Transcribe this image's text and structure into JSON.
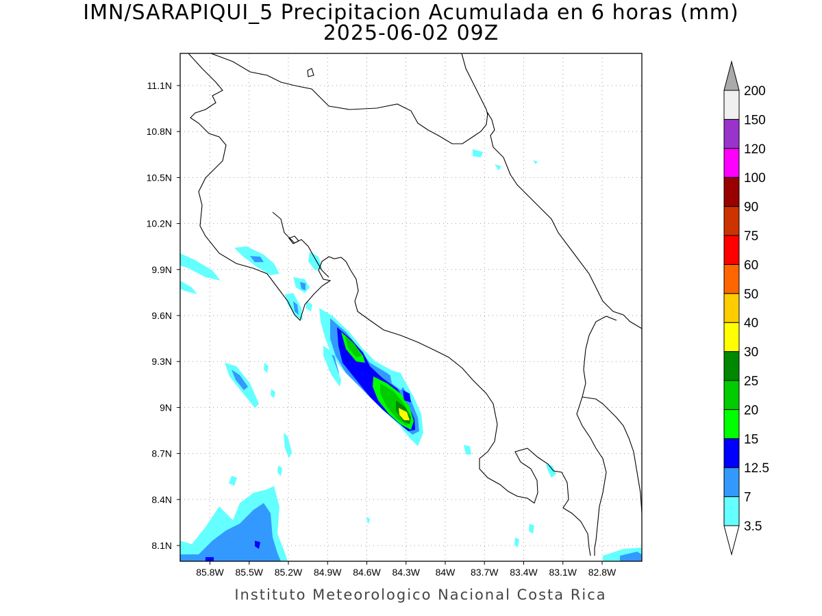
{
  "title": {
    "line1": "IMN/SARAPIQUI_5 Precipitacion Acumulada en 6 horas (mm)",
    "line2": "2025-06-02 09Z"
  },
  "footer": "Instituto Meteorologico Nacional Costa Rica",
  "map": {
    "lon_labels": [
      "85.8W",
      "85.5W",
      "85.2W",
      "84.9W",
      "84.6W",
      "84.3W",
      "84W",
      "83.7W",
      "83.4W",
      "83.1W",
      "82.8W"
    ],
    "lat_labels": [
      "11.1N",
      "10.8N",
      "10.5N",
      "10.2N",
      "9.9N",
      "9.6N",
      "9.3N",
      "9N",
      "8.7N",
      "8.4N",
      "8.1N"
    ]
  },
  "colorbar": {
    "levels": [
      "3.5",
      "7",
      "12.5",
      "15",
      "20",
      "25",
      "30",
      "40",
      "50",
      "60",
      "75",
      "90",
      "100",
      "120",
      "150",
      "200"
    ],
    "colors": [
      "#64ffff",
      "#3399ff",
      "#0000ff",
      "#00ff00",
      "#00cc00",
      "#008800",
      "#ffff00",
      "#ffcc00",
      "#ff6600",
      "#ff0000",
      "#cc3300",
      "#990000",
      "#ff00ff",
      "#9933cc",
      "#f0f0f0",
      "#aaaaaa"
    ]
  }
}
